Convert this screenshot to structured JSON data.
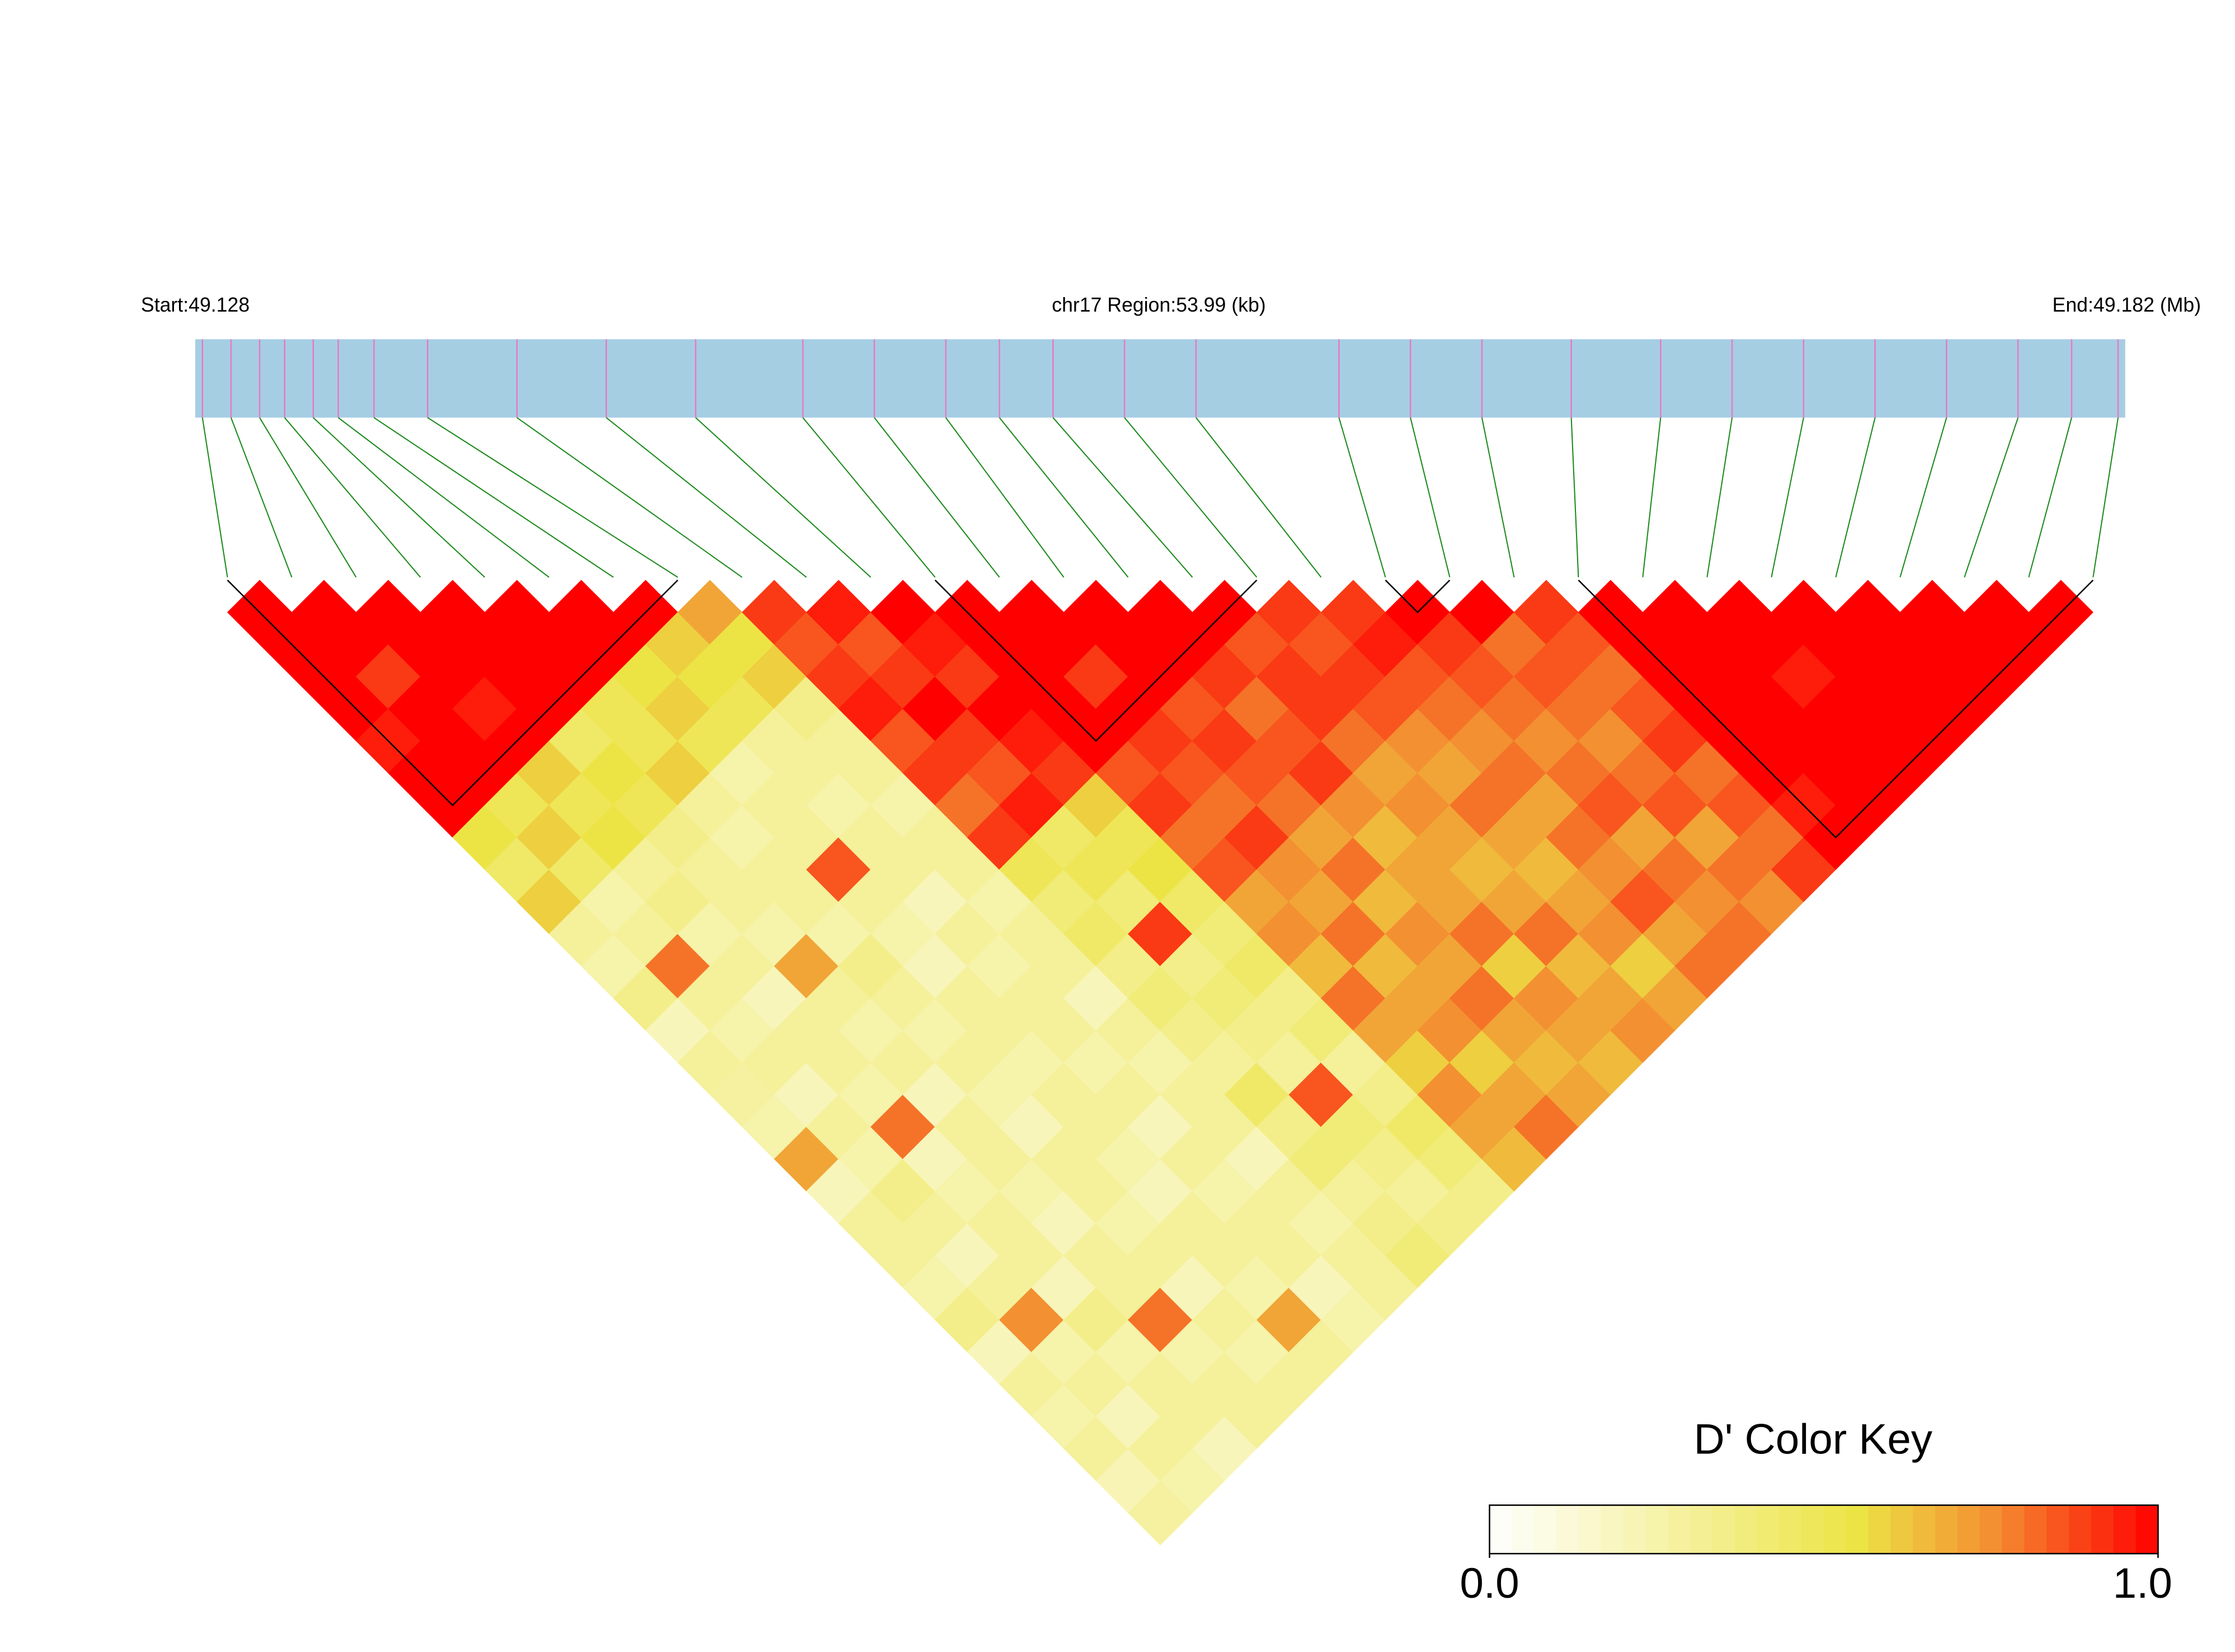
{
  "chart_data": {
    "type": "ld-heatmap",
    "start_label": "Start:49.128",
    "region_label": "chr17 Region:53.99 (kb)",
    "end_label": "End:49.182 (Mb)",
    "xlim": [
      49.128,
      49.182
    ],
    "snp_positions": [
      49.1282,
      49.129,
      49.1298,
      49.1305,
      49.1313,
      49.132,
      49.133,
      49.1345,
      49.137,
      49.1395,
      49.142,
      49.145,
      49.147,
      49.149,
      49.1505,
      49.152,
      49.154,
      49.156,
      49.16,
      49.162,
      49.164,
      49.1665,
      49.169,
      49.171,
      49.173,
      49.175,
      49.177,
      49.179,
      49.1805,
      49.1818
    ],
    "dprime": [
      [
        1,
        1,
        1,
        1,
        0.95,
        1,
        1,
        0.55,
        0.45,
        0.6,
        0.3,
        0.25,
        0.35,
        0.2,
        0.3,
        0.28,
        0.25,
        0.7,
        0.2,
        0.3,
        0.3,
        0.25,
        0.35,
        0.2,
        0.3,
        0.25,
        0.3,
        0.22,
        0.28
      ],
      [
        1,
        1,
        0.9,
        1,
        1,
        1,
        0.5,
        0.6,
        0.45,
        0.25,
        0.3,
        0.8,
        0.3,
        0.25,
        0.3,
        0.2,
        0.3,
        0.25,
        0.35,
        0.3,
        0.2,
        0.3,
        0.75,
        0.25,
        0.3,
        0.2,
        0.3,
        0.25
      ],
      [
        1,
        1,
        1,
        0.95,
        1,
        0.6,
        0.5,
        0.55,
        0.3,
        0.35,
        0.25,
        0.3,
        0.2,
        0.3,
        0.3,
        0.25,
        0.8,
        0.2,
        0.25,
        0.3,
        0.3,
        0.2,
        0.35,
        0.25,
        0.3,
        0.3,
        0.2
      ],
      [
        1,
        1,
        1,
        1,
        0.45,
        0.55,
        0.5,
        0.35,
        0.3,
        0.3,
        0.25,
        0.7,
        0.3,
        0.25,
        0.3,
        0.2,
        0.3,
        0.3,
        0.25,
        0.2,
        0.3,
        0.3,
        0.8,
        0.25,
        0.3,
        0.3
      ],
      [
        1,
        1,
        1,
        0.5,
        0.5,
        0.6,
        0.3,
        0.25,
        0.3,
        0.3,
        0.25,
        0.35,
        0.3,
        0.25,
        0.3,
        0.25,
        0.2,
        0.3,
        0.3,
        0.25,
        0.3,
        0.2,
        0.3,
        0.25,
        0.3
      ],
      [
        1,
        1,
        0.55,
        0.6,
        0.5,
        0.25,
        0.3,
        0.3,
        0.85,
        0.3,
        0.25,
        0.2,
        0.3,
        0.3,
        0.25,
        0.3,
        0.3,
        0.25,
        0.2,
        0.3,
        0.3,
        0.25,
        0.7,
        0.3
      ],
      [
        1,
        0.6,
        0.55,
        0.5,
        0.3,
        0.3,
        0.25,
        0.3,
        0.3,
        0.2,
        0.3,
        0.25,
        0.3,
        0.3,
        0.25,
        0.3,
        0.2,
        0.3,
        0.25,
        0.3,
        0.3,
        0.2,
        0.25
      ],
      [
        0.7,
        0.55,
        0.6,
        0.35,
        0.3,
        0.3,
        0.25,
        0.3,
        0.3,
        0.25,
        0.3,
        0.3,
        0.2,
        0.3,
        0.25,
        0.3,
        0.3,
        0.2,
        0.3,
        0.25,
        0.3,
        0.3
      ],
      [
        0.9,
        0.85,
        0.9,
        0.95,
        0.85,
        0.9,
        0.8,
        0.9,
        0.5,
        0.4,
        0.45,
        0.35,
        0.4,
        0.35,
        0.3,
        0.45,
        0.35,
        0.4,
        0.3,
        0.35,
        0.4
      ],
      [
        0.95,
        0.85,
        0.9,
        1,
        0.9,
        0.85,
        0.95,
        0.45,
        0.5,
        0.4,
        0.9,
        0.35,
        0.4,
        0.35,
        0.3,
        0.85,
        0.4,
        0.35,
        0.3,
        0.35
      ],
      [
        1,
        0.95,
        0.9,
        1,
        0.95,
        0.9,
        0.6,
        0.5,
        0.55,
        0.45,
        0.4,
        0.45,
        0.35,
        0.4,
        0.3,
        0.35,
        0.45,
        0.4,
        0.35
      ],
      [
        1,
        1,
        1,
        1,
        1,
        0.85,
        0.9,
        0.8,
        0.85,
        0.7,
        0.75,
        0.65,
        0.8,
        0.7,
        0.6,
        0.75,
        0.7,
        0.65
      ],
      [
        1,
        1,
        0.9,
        1,
        0.9,
        0.85,
        0.8,
        0.9,
        0.75,
        0.7,
        0.8,
        0.65,
        0.7,
        0.75,
        0.6,
        0.7,
        0.8
      ],
      [
        1,
        1,
        1,
        0.85,
        0.9,
        0.85,
        0.8,
        0.7,
        0.8,
        0.65,
        0.75,
        0.7,
        0.8,
        0.7,
        0.65,
        0.7
      ],
      [
        1,
        1,
        0.9,
        0.8,
        0.85,
        0.9,
        0.75,
        0.65,
        0.7,
        0.7,
        0.8,
        0.6,
        0.75,
        0.7,
        0.65
      ],
      [
        1,
        0.85,
        0.9,
        0.9,
        0.8,
        0.7,
        0.75,
        0.7,
        0.65,
        0.7,
        0.8,
        0.65,
        0.7,
        0.75
      ],
      [
        0.9,
        0.85,
        0.9,
        0.85,
        0.75,
        0.7,
        0.8,
        0.7,
        0.65,
        0.7,
        0.75,
        0.6,
        0.7
      ],
      [
        0.9,
        0.95,
        0.85,
        0.8,
        0.75,
        0.8,
        0.7,
        0.8,
        0.75,
        0.85,
        0.7,
        0.8
      ],
      [
        1,
        0.9,
        0.85,
        0.8,
        0.75,
        0.8,
        0.85,
        0.7,
        0.8,
        0.75,
        0.8
      ],
      [
        1,
        0.8,
        0.85,
        0.8,
        0.75,
        0.8,
        0.85,
        0.7,
        0.8,
        0.75
      ],
      [
        0.9,
        0.85,
        0.8,
        0.85,
        0.9,
        0.8,
        0.85,
        0.8,
        0.9
      ],
      [
        1,
        1,
        1,
        1,
        1,
        1,
        0.95,
        1
      ],
      [
        1,
        1,
        1,
        1,
        1,
        1,
        1
      ],
      [
        1,
        1,
        0.95,
        1,
        1,
        1
      ],
      [
        1,
        1,
        1,
        1,
        1
      ],
      [
        1,
        1,
        1,
        1
      ],
      [
        1,
        1,
        1
      ],
      [
        1,
        1
      ],
      [
        1
      ]
    ],
    "blocks": [
      [
        0,
        7
      ],
      [
        11,
        16
      ],
      [
        18,
        19
      ],
      [
        21,
        29
      ]
    ],
    "bar_color": "#a6cee3",
    "snp_tick_color": "#e47cc4",
    "connector_color": "#1a8a1a",
    "block_color": "#000000",
    "color_stops": [
      [
        0,
        "#ffffff"
      ],
      [
        0.55,
        "#ece445"
      ],
      [
        0.75,
        "#f39032"
      ],
      [
        1,
        "#ff0000"
      ]
    ],
    "colorkey": {
      "title": "D' Color Key",
      "lim": [
        0,
        1
      ],
      "steps": 30,
      "ticks": [
        {
          "value": 0,
          "label": "0.0"
        },
        {
          "value": 1,
          "label": "1.0"
        }
      ]
    }
  }
}
